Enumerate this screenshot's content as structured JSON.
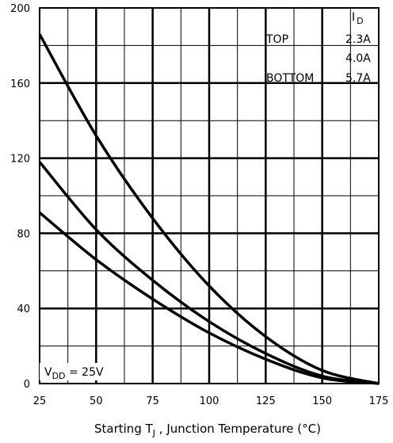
{
  "chart_data": {
    "type": "line",
    "xlabel_parts": {
      "pre": "Starting T",
      "sub": "J",
      "post": " , Junction Temperature (°C)"
    },
    "ylabel": "",
    "x_ticks": [
      "25",
      "50",
      "75",
      "100",
      "125",
      "150",
      "175"
    ],
    "y_ticks": [
      "0",
      "40",
      "80",
      "120",
      "160",
      "200"
    ],
    "xlim": [
      25,
      175
    ],
    "ylim": [
      0,
      200
    ],
    "grid": true,
    "legend": {
      "header_main": "I",
      "header_sub": "D",
      "top_label": "TOP",
      "top_value": "2.3A",
      "mid_value": "4.0A",
      "bottom_label": "BOTTOM",
      "bottom_value": "5.7A",
      "placement": "top-right"
    },
    "annotation": {
      "main": "V",
      "sub": "DD",
      "rest": " = 25V"
    },
    "series": [
      {
        "name": "2.3A",
        "x": [
          25,
          50,
          75,
          100,
          125,
          150,
          175
        ],
        "y": [
          186,
          132,
          88,
          52,
          25,
          7,
          0
        ]
      },
      {
        "name": "4.0A",
        "x": [
          25,
          50,
          75,
          100,
          125,
          150,
          175
        ],
        "y": [
          118,
          82,
          55,
          33,
          16,
          4,
          0
        ]
      },
      {
        "name": "5.7A",
        "x": [
          25,
          50,
          75,
          100,
          125,
          150,
          175
        ],
        "y": [
          91,
          66,
          45,
          27,
          13,
          3,
          0
        ]
      }
    ],
    "colors": {
      "line": "#000000",
      "grid": "#000000",
      "background": "#ffffff"
    }
  }
}
